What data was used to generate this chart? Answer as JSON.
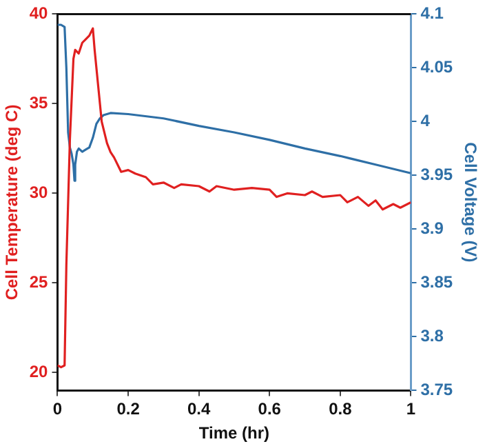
{
  "chart_data": {
    "type": "line",
    "xlabel": "Time (hr)",
    "ylabel": "Cell Temperature (deg C)",
    "y2label": "Cell Voltage (V)",
    "xlim": [
      0,
      1
    ],
    "xticks": [
      0,
      0.2,
      0.4,
      0.6,
      0.8,
      1
    ],
    "ylim": [
      19,
      40
    ],
    "yticks": [
      20,
      25,
      30,
      35,
      40
    ],
    "y2lim": [
      3.75,
      4.1
    ],
    "y2ticks": [
      3.75,
      3.8,
      3.85,
      3.9,
      3.95,
      4,
      4.05,
      4.1
    ],
    "grid": false,
    "legend": false,
    "marker": "none",
    "line_style": "solid",
    "series": [
      {
        "color": "#e02020",
        "axis": "y",
        "x": [
          0,
          0.01,
          0.02,
          0.025,
          0.035,
          0.045,
          0.05,
          0.06,
          0.07,
          0.08,
          0.09,
          0.1,
          0.105,
          0.115,
          0.125,
          0.14,
          0.15,
          0.16,
          0.18,
          0.2,
          0.22,
          0.25,
          0.27,
          0.3,
          0.33,
          0.35,
          0.4,
          0.43,
          0.45,
          0.5,
          0.55,
          0.6,
          0.62,
          0.65,
          0.7,
          0.72,
          0.75,
          0.8,
          0.82,
          0.85,
          0.88,
          0.9,
          0.92,
          0.95,
          0.97,
          1.0
        ],
        "values": [
          20.4,
          20.3,
          20.4,
          26,
          33,
          37.5,
          38,
          37.8,
          38.4,
          38.6,
          38.8,
          39.2,
          38,
          36,
          34,
          32.8,
          32.3,
          32,
          31.2,
          31.3,
          31.1,
          30.9,
          30.5,
          30.6,
          30.3,
          30.5,
          30.4,
          30.1,
          30.4,
          30.2,
          30.3,
          30.2,
          29.8,
          30.0,
          29.9,
          30.1,
          29.8,
          29.9,
          29.5,
          29.8,
          29.3,
          29.6,
          29.1,
          29.4,
          29.2,
          29.5
        ]
      },
      {
        "color": "#2e6fa6",
        "axis": "y2",
        "x": [
          0,
          0.01,
          0.02,
          0.025,
          0.03,
          0.035,
          0.04,
          0.045,
          0.048,
          0.05,
          0.055,
          0.06,
          0.07,
          0.08,
          0.09,
          0.1,
          0.11,
          0.12,
          0.13,
          0.15,
          0.2,
          0.3,
          0.4,
          0.5,
          0.6,
          0.7,
          0.8,
          0.9,
          1.0
        ],
        "values": [
          4.09,
          4.09,
          4.088,
          4.05,
          3.99,
          3.976,
          3.97,
          3.96,
          3.945,
          3.96,
          3.972,
          3.975,
          3.972,
          3.974,
          3.976,
          3.985,
          3.998,
          4.003,
          4.006,
          4.008,
          4.007,
          4.003,
          3.996,
          3.99,
          3.983,
          3.975,
          3.968,
          3.96,
          3.952
        ]
      }
    ]
  }
}
